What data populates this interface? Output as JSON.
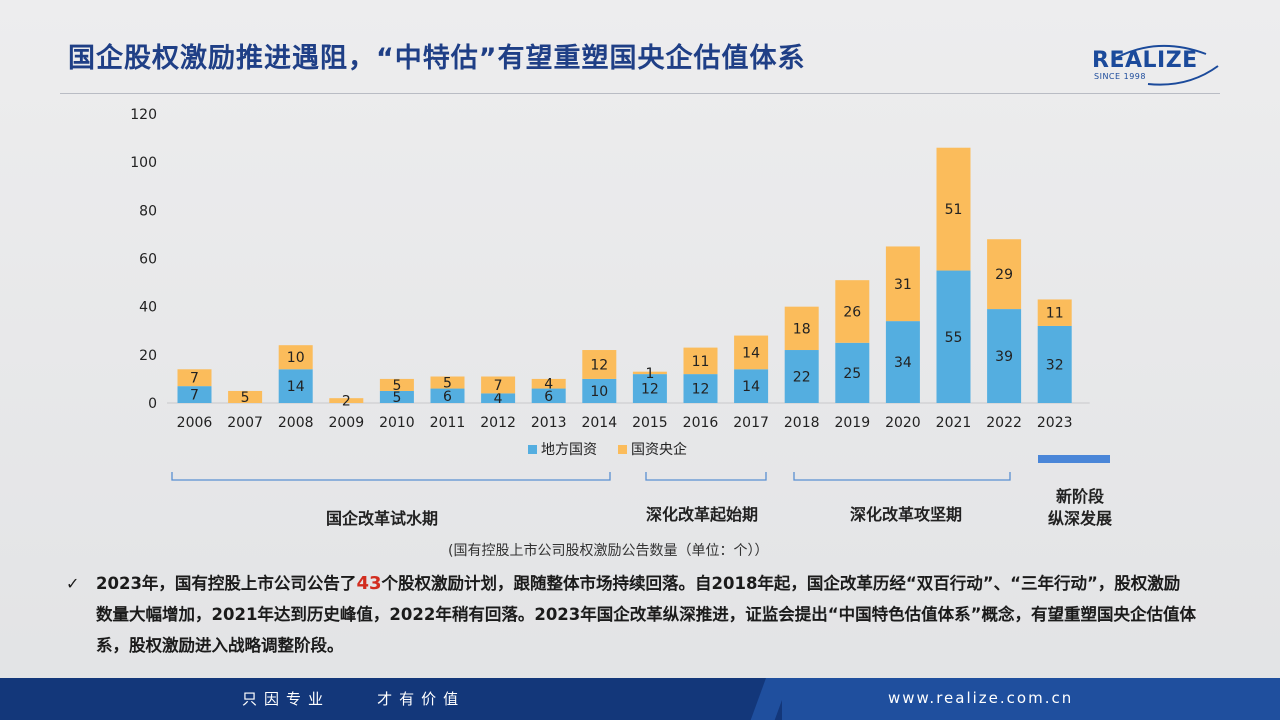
{
  "title": "国企股权激励推进遇阻，“中特估”有望重塑国央企估值体系",
  "logo": {
    "word": "REALIZE",
    "since": "SINCE 1998"
  },
  "chart_data": {
    "type": "bar",
    "stacked": true,
    "categories": [
      "2006",
      "2007",
      "2008",
      "2009",
      "2010",
      "2011",
      "2012",
      "2013",
      "2014",
      "2015",
      "2016",
      "2017",
      "2018",
      "2019",
      "2020",
      "2021",
      "2022",
      "2023"
    ],
    "series": [
      {
        "name": "地方国资",
        "color": "#54aee0",
        "values": [
          7,
          null,
          14,
          null,
          5,
          6,
          4,
          6,
          10,
          12,
          12,
          14,
          22,
          25,
          34,
          55,
          39,
          32
        ]
      },
      {
        "name": "国资央企",
        "color": "#fbbc5b",
        "values": [
          7,
          5,
          10,
          2,
          5,
          5,
          7,
          4,
          12,
          1,
          11,
          14,
          18,
          26,
          31,
          51,
          29,
          11
        ]
      }
    ],
    "ylim": [
      0,
      120
    ],
    "yticks": [
      0,
      20,
      40,
      60,
      80,
      100,
      120
    ],
    "legend_position": "bottom",
    "grid": false
  },
  "phases": [
    {
      "label": "国企改革试水期"
    },
    {
      "label": "深化改革起始期"
    },
    {
      "label": "深化改革攻坚期"
    }
  ],
  "new_stage": {
    "line1": "新阶段",
    "line2": "纵深发展"
  },
  "source_note": "(国有控股上市公司股权激励公告数量（单位：个））",
  "bullet": {
    "mark": "✓",
    "part1": "2023年，国有控股上市公司公告了",
    "highlight": "43",
    "part2": "个股权激励计划，跟随整体市场持续回落。自2018年起，国企改革历经“双百行动”、“三年行动”，股权激励数量大幅增加，2021年达到历史峰值，2022年稍有回落。2023年国企改革纵深推进，证监会提出“中国特色估值体系”概念，有望重塑国央企估值体系，股权激励进入战略调整阶段。"
  },
  "footer": {
    "motto": "只因专业    才有价值",
    "site": "www.realize.com.cn"
  }
}
